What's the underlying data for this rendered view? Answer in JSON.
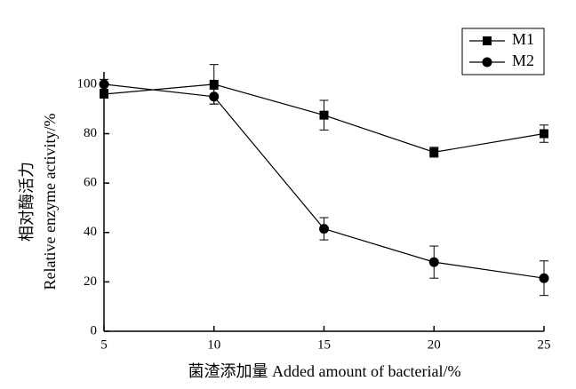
{
  "chart_data": {
    "type": "line",
    "x_label": "菌渣添加量 Added amount of bacterial/%",
    "y_label": [
      "相对酶活力",
      "Relative enzyme activity/%"
    ],
    "x": [
      5,
      10,
      15,
      20,
      25
    ],
    "series": [
      {
        "name": "M1",
        "color": "#000000",
        "marker": "square",
        "values": [
          96,
          100,
          87.5,
          72.5,
          80
        ],
        "errors": [
          1.5,
          8,
          6,
          2,
          3.5
        ]
      },
      {
        "name": "M2",
        "color": "#000000",
        "marker": "circle",
        "values": [
          100,
          95,
          41.5,
          28,
          21.5
        ],
        "errors": [
          2,
          3,
          4.5,
          6.5,
          7
        ]
      }
    ],
    "xlim": [
      5,
      25
    ],
    "xticks": [
      5,
      10,
      15,
      20,
      25
    ],
    "ylim": [
      0,
      105
    ],
    "yticks": [
      0,
      20,
      40,
      60,
      80,
      100
    ],
    "grid": false,
    "legend": "top-right"
  }
}
